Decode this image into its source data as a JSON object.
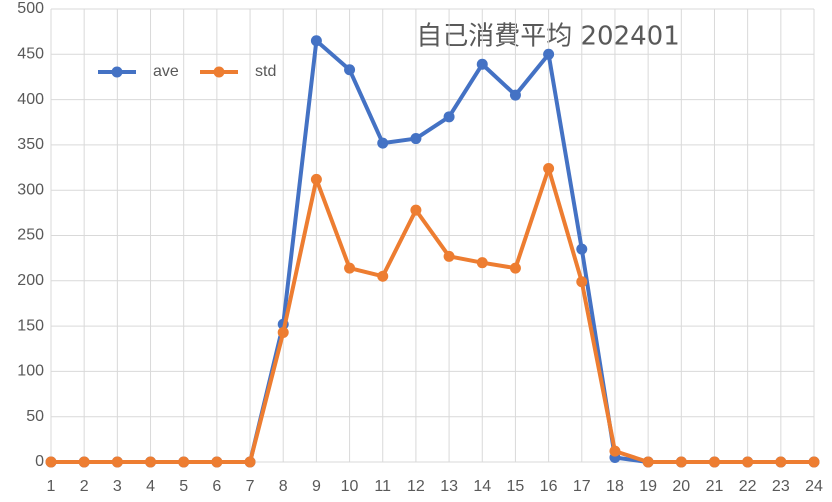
{
  "chart_data": {
    "type": "line",
    "title": "自己消費平均  202401",
    "categories": [
      "1",
      "2",
      "3",
      "4",
      "5",
      "6",
      "7",
      "8",
      "9",
      "10",
      "11",
      "12",
      "13",
      "14",
      "15",
      "16",
      "17",
      "18",
      "19",
      "20",
      "21",
      "22",
      "23",
      "24"
    ],
    "series": [
      {
        "name": "ave",
        "color": "#4472c4",
        "values": [
          0,
          0,
          0,
          0,
          0,
          0,
          0,
          152,
          465,
          433,
          352,
          357,
          381,
          439,
          405,
          450,
          235,
          5,
          0,
          0,
          0,
          0,
          0,
          0
        ]
      },
      {
        "name": "std",
        "color": "#ed7d31",
        "values": [
          0,
          0,
          0,
          0,
          0,
          0,
          0,
          143,
          312,
          214,
          205,
          278,
          227,
          220,
          214,
          324,
          199,
          12,
          0,
          0,
          0,
          0,
          0,
          0
        ]
      }
    ],
    "ylim": [
      0,
      500
    ],
    "yticks": [
      0,
      50,
      100,
      150,
      200,
      250,
      300,
      350,
      400,
      450,
      500
    ],
    "grid": true,
    "legend": "top-left"
  }
}
